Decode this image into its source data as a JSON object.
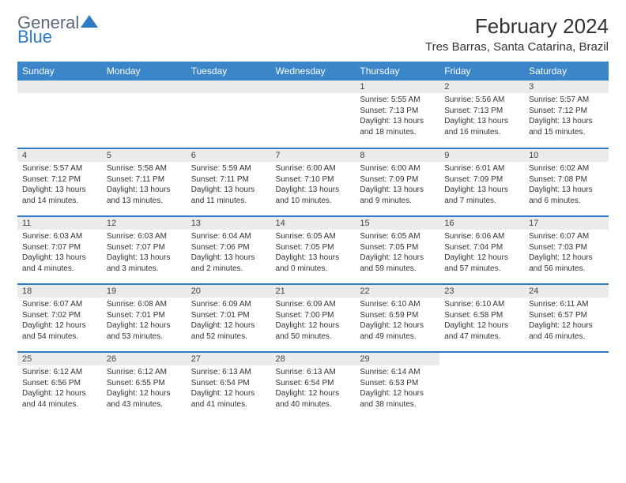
{
  "logo": {
    "general": "General",
    "blue": "Blue"
  },
  "title": "February 2024",
  "location": "Tres Barras, Santa Catarina, Brazil",
  "colors": {
    "header_bg": "#3a86c8",
    "divider": "#2c7bc4",
    "daynum_bg": "#ebebeb",
    "logo_gray": "#5a6a7a",
    "logo_blue": "#2c7bc4"
  },
  "weekdays": [
    "Sunday",
    "Monday",
    "Tuesday",
    "Wednesday",
    "Thursday",
    "Friday",
    "Saturday"
  ],
  "weeks": [
    [
      {
        "n": "",
        "sunrise": "",
        "sunset": "",
        "daylight": ""
      },
      {
        "n": "",
        "sunrise": "",
        "sunset": "",
        "daylight": ""
      },
      {
        "n": "",
        "sunrise": "",
        "sunset": "",
        "daylight": ""
      },
      {
        "n": "",
        "sunrise": "",
        "sunset": "",
        "daylight": ""
      },
      {
        "n": "1",
        "sunrise": "Sunrise: 5:55 AM",
        "sunset": "Sunset: 7:13 PM",
        "daylight": "Daylight: 13 hours and 18 minutes."
      },
      {
        "n": "2",
        "sunrise": "Sunrise: 5:56 AM",
        "sunset": "Sunset: 7:13 PM",
        "daylight": "Daylight: 13 hours and 16 minutes."
      },
      {
        "n": "3",
        "sunrise": "Sunrise: 5:57 AM",
        "sunset": "Sunset: 7:12 PM",
        "daylight": "Daylight: 13 hours and 15 minutes."
      }
    ],
    [
      {
        "n": "4",
        "sunrise": "Sunrise: 5:57 AM",
        "sunset": "Sunset: 7:12 PM",
        "daylight": "Daylight: 13 hours and 14 minutes."
      },
      {
        "n": "5",
        "sunrise": "Sunrise: 5:58 AM",
        "sunset": "Sunset: 7:11 PM",
        "daylight": "Daylight: 13 hours and 13 minutes."
      },
      {
        "n": "6",
        "sunrise": "Sunrise: 5:59 AM",
        "sunset": "Sunset: 7:11 PM",
        "daylight": "Daylight: 13 hours and 11 minutes."
      },
      {
        "n": "7",
        "sunrise": "Sunrise: 6:00 AM",
        "sunset": "Sunset: 7:10 PM",
        "daylight": "Daylight: 13 hours and 10 minutes."
      },
      {
        "n": "8",
        "sunrise": "Sunrise: 6:00 AM",
        "sunset": "Sunset: 7:09 PM",
        "daylight": "Daylight: 13 hours and 9 minutes."
      },
      {
        "n": "9",
        "sunrise": "Sunrise: 6:01 AM",
        "sunset": "Sunset: 7:09 PM",
        "daylight": "Daylight: 13 hours and 7 minutes."
      },
      {
        "n": "10",
        "sunrise": "Sunrise: 6:02 AM",
        "sunset": "Sunset: 7:08 PM",
        "daylight": "Daylight: 13 hours and 6 minutes."
      }
    ],
    [
      {
        "n": "11",
        "sunrise": "Sunrise: 6:03 AM",
        "sunset": "Sunset: 7:07 PM",
        "daylight": "Daylight: 13 hours and 4 minutes."
      },
      {
        "n": "12",
        "sunrise": "Sunrise: 6:03 AM",
        "sunset": "Sunset: 7:07 PM",
        "daylight": "Daylight: 13 hours and 3 minutes."
      },
      {
        "n": "13",
        "sunrise": "Sunrise: 6:04 AM",
        "sunset": "Sunset: 7:06 PM",
        "daylight": "Daylight: 13 hours and 2 minutes."
      },
      {
        "n": "14",
        "sunrise": "Sunrise: 6:05 AM",
        "sunset": "Sunset: 7:05 PM",
        "daylight": "Daylight: 13 hours and 0 minutes."
      },
      {
        "n": "15",
        "sunrise": "Sunrise: 6:05 AM",
        "sunset": "Sunset: 7:05 PM",
        "daylight": "Daylight: 12 hours and 59 minutes."
      },
      {
        "n": "16",
        "sunrise": "Sunrise: 6:06 AM",
        "sunset": "Sunset: 7:04 PM",
        "daylight": "Daylight: 12 hours and 57 minutes."
      },
      {
        "n": "17",
        "sunrise": "Sunrise: 6:07 AM",
        "sunset": "Sunset: 7:03 PM",
        "daylight": "Daylight: 12 hours and 56 minutes."
      }
    ],
    [
      {
        "n": "18",
        "sunrise": "Sunrise: 6:07 AM",
        "sunset": "Sunset: 7:02 PM",
        "daylight": "Daylight: 12 hours and 54 minutes."
      },
      {
        "n": "19",
        "sunrise": "Sunrise: 6:08 AM",
        "sunset": "Sunset: 7:01 PM",
        "daylight": "Daylight: 12 hours and 53 minutes."
      },
      {
        "n": "20",
        "sunrise": "Sunrise: 6:09 AM",
        "sunset": "Sunset: 7:01 PM",
        "daylight": "Daylight: 12 hours and 52 minutes."
      },
      {
        "n": "21",
        "sunrise": "Sunrise: 6:09 AM",
        "sunset": "Sunset: 7:00 PM",
        "daylight": "Daylight: 12 hours and 50 minutes."
      },
      {
        "n": "22",
        "sunrise": "Sunrise: 6:10 AM",
        "sunset": "Sunset: 6:59 PM",
        "daylight": "Daylight: 12 hours and 49 minutes."
      },
      {
        "n": "23",
        "sunrise": "Sunrise: 6:10 AM",
        "sunset": "Sunset: 6:58 PM",
        "daylight": "Daylight: 12 hours and 47 minutes."
      },
      {
        "n": "24",
        "sunrise": "Sunrise: 6:11 AM",
        "sunset": "Sunset: 6:57 PM",
        "daylight": "Daylight: 12 hours and 46 minutes."
      }
    ],
    [
      {
        "n": "25",
        "sunrise": "Sunrise: 6:12 AM",
        "sunset": "Sunset: 6:56 PM",
        "daylight": "Daylight: 12 hours and 44 minutes."
      },
      {
        "n": "26",
        "sunrise": "Sunrise: 6:12 AM",
        "sunset": "Sunset: 6:55 PM",
        "daylight": "Daylight: 12 hours and 43 minutes."
      },
      {
        "n": "27",
        "sunrise": "Sunrise: 6:13 AM",
        "sunset": "Sunset: 6:54 PM",
        "daylight": "Daylight: 12 hours and 41 minutes."
      },
      {
        "n": "28",
        "sunrise": "Sunrise: 6:13 AM",
        "sunset": "Sunset: 6:54 PM",
        "daylight": "Daylight: 12 hours and 40 minutes."
      },
      {
        "n": "29",
        "sunrise": "Sunrise: 6:14 AM",
        "sunset": "Sunset: 6:53 PM",
        "daylight": "Daylight: 12 hours and 38 minutes."
      },
      {
        "n": "",
        "sunrise": "",
        "sunset": "",
        "daylight": ""
      },
      {
        "n": "",
        "sunrise": "",
        "sunset": "",
        "daylight": ""
      }
    ]
  ]
}
